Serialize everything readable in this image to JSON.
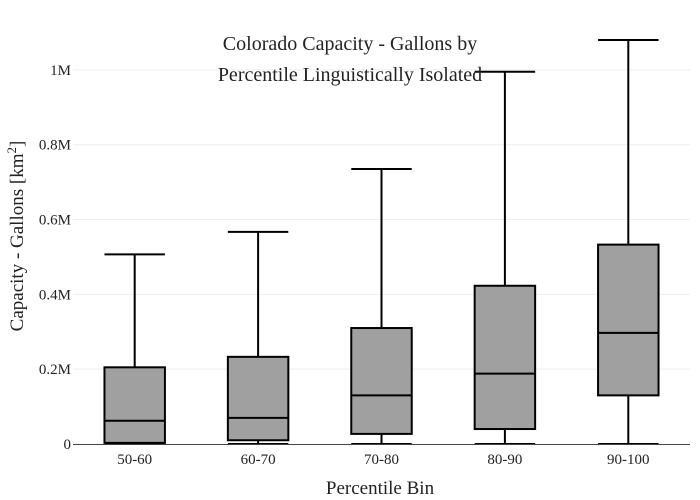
{
  "chart_data": {
    "type": "box",
    "title_lines": [
      "Colorado Capacity - Gallons by",
      "Percentile Linguistically Isolated"
    ],
    "xlabel": "Percentile Bin",
    "ylabel_main": "Capacity - Gallons  [km",
    "ylabel_sup": "2",
    "ylabel_end": "]",
    "categories": [
      "50-60",
      "60-70",
      "70-80",
      "80-90",
      "90-100"
    ],
    "boxes": [
      {
        "min": 0,
        "q1": 3000,
        "median": 62000,
        "q3": 205000,
        "max": 507000
      },
      {
        "min": 0,
        "q1": 10000,
        "median": 70000,
        "q3": 233000,
        "max": 567000
      },
      {
        "min": 0,
        "q1": 27000,
        "median": 130000,
        "q3": 310000,
        "max": 735000
      },
      {
        "min": 0,
        "q1": 40000,
        "median": 188000,
        "q3": 423000,
        "max": 995000
      },
      {
        "min": 0,
        "q1": 130000,
        "median": 297000,
        "q3": 533000,
        "max": 1080000
      }
    ],
    "yticks": [
      {
        "value": 0,
        "label": "0"
      },
      {
        "value": 200000,
        "label": "0.2M"
      },
      {
        "value": 400000,
        "label": "0.4M"
      },
      {
        "value": 600000,
        "label": "0.6M"
      },
      {
        "value": 800000,
        "label": "0.8M"
      },
      {
        "value": 1000000,
        "label": "1M"
      }
    ],
    "ylim": [
      0,
      1080000
    ],
    "grid": true,
    "box_color": "#a0a0a0",
    "line_color": "#000000"
  }
}
